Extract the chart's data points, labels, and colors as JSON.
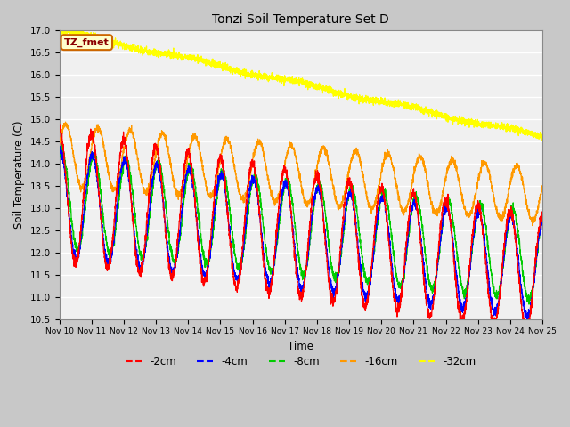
{
  "title": "Tonzi Soil Temperature Set D",
  "xlabel": "Time",
  "ylabel": "Soil Temperature (C)",
  "ylim": [
    10.5,
    17.0
  ],
  "xtick_labels": [
    "Nov 10",
    "Nov 11",
    "Nov 12",
    "Nov 13",
    "Nov 14",
    "Nov 15",
    "Nov 16",
    "Nov 17",
    "Nov 18",
    "Nov 19",
    "Nov 20",
    "Nov 21",
    "Nov 22",
    "Nov 23",
    "Nov 24",
    "Nov 25"
  ],
  "legend_labels": [
    "-2cm",
    "-4cm",
    "-8cm",
    "-16cm",
    "-32cm"
  ],
  "legend_colors": [
    "#ff0000",
    "#0000ff",
    "#00cc00",
    "#ff9900",
    "#ffff00"
  ],
  "annotation_text": "TZ_fmet",
  "annotation_bg": "#ffffcc",
  "annotation_border": "#cc6600",
  "n_points": 3600,
  "colors": {
    "2cm": "#ff0000",
    "4cm": "#0000ff",
    "8cm": "#00cc00",
    "16cm": "#ff9900",
    "32cm": "#ffff00"
  },
  "yticks": [
    10.5,
    11.0,
    11.5,
    12.0,
    12.5,
    13.0,
    13.5,
    14.0,
    14.5,
    15.0,
    15.5,
    16.0,
    16.5,
    17.0
  ]
}
